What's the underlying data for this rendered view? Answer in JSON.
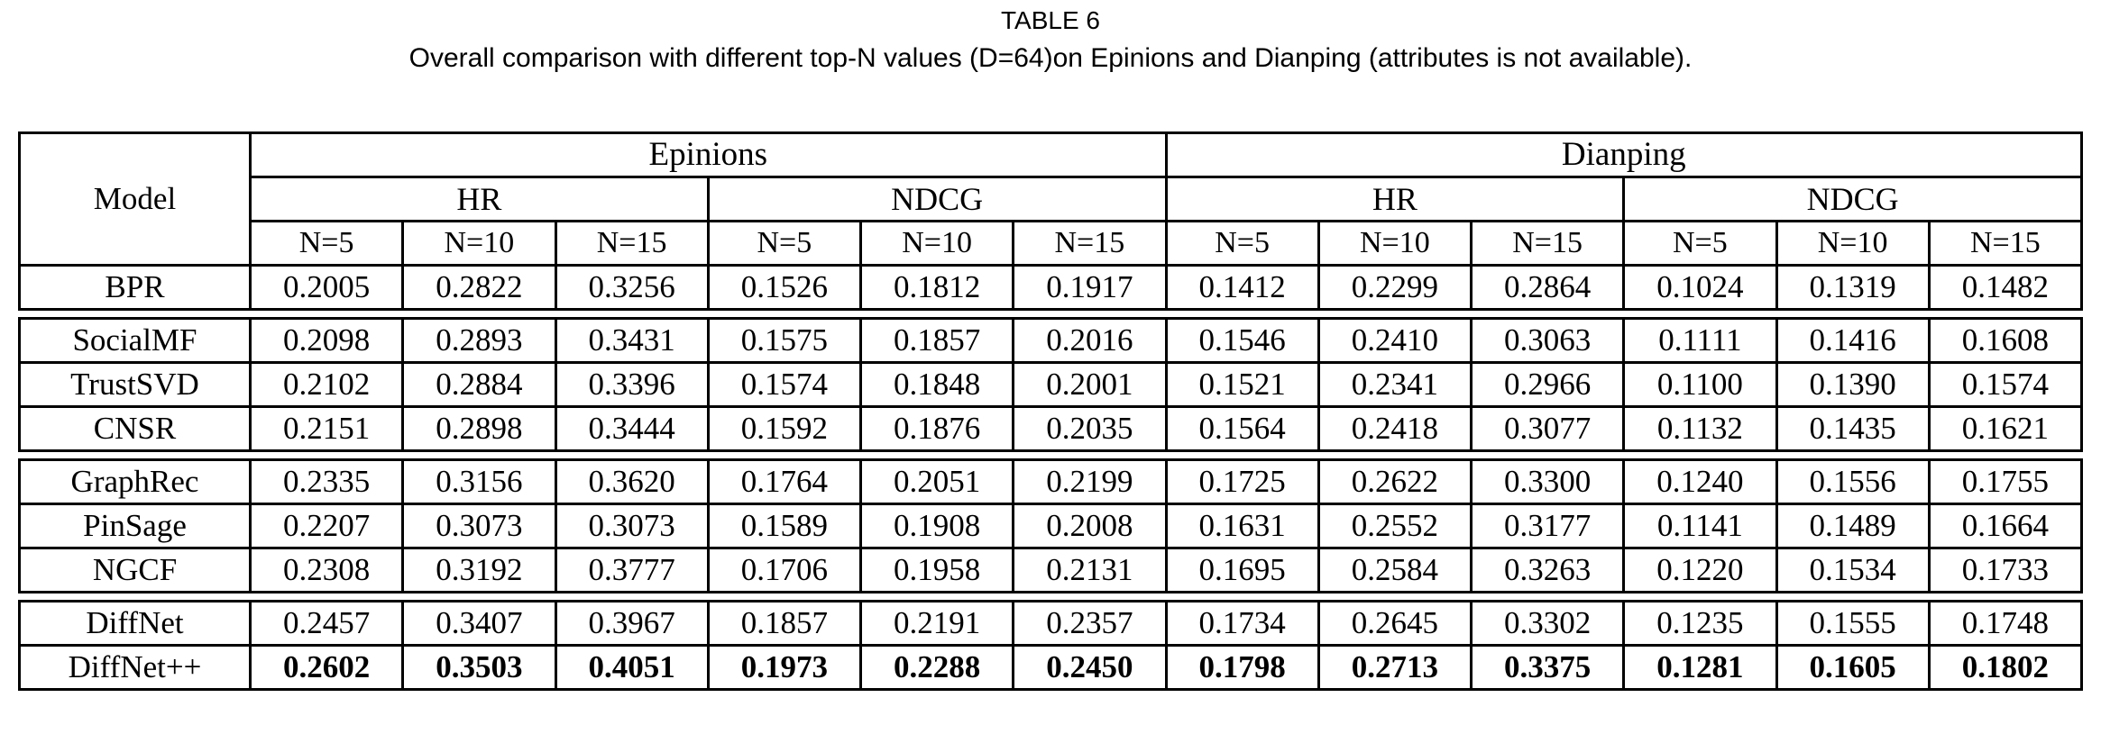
{
  "caption": {
    "label": "TABLE 6",
    "subtitle": "Overall comparison with different top-N values (D=64)on Epinions and Dianping (attributes is not available)."
  },
  "table": {
    "corner_label": "Model",
    "dataset_headers": [
      "Epinions",
      "Dianping"
    ],
    "metric_headers": [
      "HR",
      "NDCG",
      "HR",
      "NDCG"
    ],
    "n_headers": [
      "N=5",
      "N=10",
      "N=15",
      "N=5",
      "N=10",
      "N=15",
      "N=5",
      "N=10",
      "N=15",
      "N=5",
      "N=10",
      "N=15"
    ],
    "row_groups": [
      [
        {
          "model": "BPR",
          "bold": false,
          "values": [
            "0.2005",
            "0.2822",
            "0.3256",
            "0.1526",
            "0.1812",
            "0.1917",
            "0.1412",
            "0.2299",
            "0.2864",
            "0.1024",
            "0.1319",
            "0.1482"
          ]
        }
      ],
      [
        {
          "model": "SocialMF",
          "bold": false,
          "values": [
            "0.2098",
            "0.2893",
            "0.3431",
            "0.1575",
            "0.1857",
            "0.2016",
            "0.1546",
            "0.2410",
            "0.3063",
            "0.1111",
            "0.1416",
            "0.1608"
          ]
        },
        {
          "model": "TrustSVD",
          "bold": false,
          "values": [
            "0.2102",
            "0.2884",
            "0.3396",
            "0.1574",
            "0.1848",
            "0.2001",
            "0.1521",
            "0.2341",
            "0.2966",
            "0.1100",
            "0.1390",
            "0.1574"
          ]
        },
        {
          "model": "CNSR",
          "bold": false,
          "values": [
            "0.2151",
            "0.2898",
            "0.3444",
            "0.1592",
            "0.1876",
            "0.2035",
            "0.1564",
            "0.2418",
            "0.3077",
            "0.1132",
            "0.1435",
            "0.1621"
          ]
        }
      ],
      [
        {
          "model": "GraphRec",
          "bold": false,
          "values": [
            "0.2335",
            "0.3156",
            "0.3620",
            "0.1764",
            "0.2051",
            "0.2199",
            "0.1725",
            "0.2622",
            "0.3300",
            "0.1240",
            "0.1556",
            "0.1755"
          ]
        },
        {
          "model": "PinSage",
          "bold": false,
          "values": [
            "0.2207",
            "0.3073",
            "0.3073",
            "0.1589",
            "0.1908",
            "0.2008",
            "0.1631",
            "0.2552",
            "0.3177",
            "0.1141",
            "0.1489",
            "0.1664"
          ]
        },
        {
          "model": "NGCF",
          "bold": false,
          "values": [
            "0.2308",
            "0.3192",
            "0.3777",
            "0.1706",
            "0.1958",
            "0.2131",
            "0.1695",
            "0.2584",
            "0.3263",
            "0.1220",
            "0.1534",
            "0.1733"
          ]
        }
      ],
      [
        {
          "model": "DiffNet",
          "bold": false,
          "values": [
            "0.2457",
            "0.3407",
            "0.3967",
            "0.1857",
            "0.2191",
            "0.2357",
            "0.1734",
            "0.2645",
            "0.3302",
            "0.1235",
            "0.1555",
            "0.1748"
          ]
        },
        {
          "model": "DiffNet++",
          "bold": true,
          "values": [
            "0.2602",
            "0.3503",
            "0.4051",
            "0.1973",
            "0.2288",
            "0.2450",
            "0.1798",
            "0.2713",
            "0.3375",
            "0.1281",
            "0.1605",
            "0.1802"
          ]
        }
      ]
    ],
    "colors": {
      "border": "#000000",
      "text": "#000000",
      "background": "#ffffff"
    }
  }
}
